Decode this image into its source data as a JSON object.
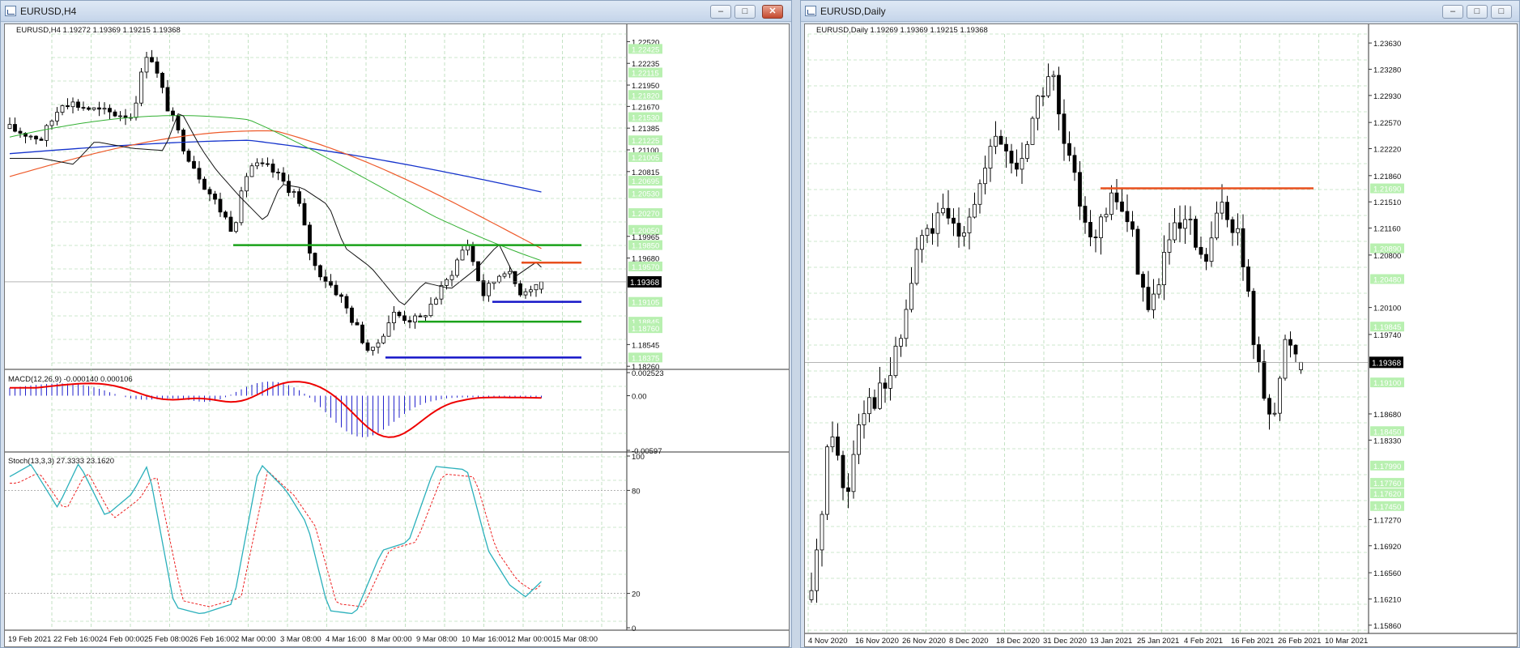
{
  "left": {
    "title": "EURUSD,H4",
    "info": "EURUSD,H4  1.19272 1.19369 1.19215 1.19368",
    "price_ticks": [
      {
        "v": 1.2252,
        "l": "1.22520",
        "hl": false
      },
      {
        "v": 1.22425,
        "l": "1.22425",
        "hl": true
      },
      {
        "v": 1.22235,
        "l": "1.22235",
        "hl": false
      },
      {
        "v": 1.22115,
        "l": "1.22115",
        "hl": true
      },
      {
        "v": 1.2195,
        "l": "1.21950",
        "hl": false
      },
      {
        "v": 1.2182,
        "l": "1.21820",
        "hl": true
      },
      {
        "v": 1.2167,
        "l": "1.21670",
        "hl": false
      },
      {
        "v": 1.2153,
        "l": "1.21530",
        "hl": true
      },
      {
        "v": 1.21385,
        "l": "1.21385",
        "hl": false
      },
      {
        "v": 1.21225,
        "l": "1.21225",
        "hl": true
      },
      {
        "v": 1.211,
        "l": "1.21100",
        "hl": false
      },
      {
        "v": 1.21005,
        "l": "1.21005",
        "hl": true
      },
      {
        "v": 1.20815,
        "l": "1.20815",
        "hl": false
      },
      {
        "v": 1.20695,
        "l": "1.20695",
        "hl": true
      },
      {
        "v": 1.2053,
        "l": "1.20530",
        "hl": true
      },
      {
        "v": 1.2027,
        "l": "1.20270",
        "hl": true
      },
      {
        "v": 1.2005,
        "l": "1.20050",
        "hl": true
      },
      {
        "v": 1.19965,
        "l": "1.19965",
        "hl": false
      },
      {
        "v": 1.1985,
        "l": "1.19850",
        "hl": true
      },
      {
        "v": 1.1968,
        "l": "1.19680",
        "hl": false
      },
      {
        "v": 1.1957,
        "l": "1.19570",
        "hl": true
      },
      {
        "v": 1.19105,
        "l": "1.19105",
        "hl": true
      },
      {
        "v": 1.18845,
        "l": "1.18845",
        "hl": true
      },
      {
        "v": 1.1876,
        "l": "1.18760",
        "hl": true
      },
      {
        "v": 1.18545,
        "l": "1.18545",
        "hl": false
      },
      {
        "v": 1.18375,
        "l": "1.18375",
        "hl": true
      },
      {
        "v": 1.1826,
        "l": "1.18260",
        "hl": false
      }
    ],
    "current_price": "1.19368",
    "macd_label": "MACD(12,26,9) -0.000140 0.000106",
    "macd_ticks": [
      "0.002523",
      "0.00",
      "-0.00597"
    ],
    "stoch_label": "Stoch(13,3,3) 27.3333 23.1620",
    "stoch_ticks": [
      "100",
      "80",
      "20",
      "0"
    ],
    "time_labels": [
      "19 Feb 2021",
      "22 Feb 16:00",
      "24 Feb 00:00",
      "25 Feb 08:00",
      "26 Feb 16:00",
      "2 Mar 00:00",
      "3 Mar 08:00",
      "4 Mar 16:00",
      "8 Mar 00:00",
      "9 Mar 08:00",
      "10 Mar 16:00",
      "12 Mar 00:00",
      "15 Mar 08:00"
    ]
  },
  "right": {
    "title": "EURUSD,Daily",
    "info": "EURUSD,Daily  1.19269 1.19369 1.19215 1.19368",
    "price_ticks": [
      {
        "v": 1.2363,
        "l": "1.23630",
        "hl": false
      },
      {
        "v": 1.2328,
        "l": "1.23280",
        "hl": false
      },
      {
        "v": 1.2293,
        "l": "1.22930",
        "hl": false
      },
      {
        "v": 1.2257,
        "l": "1.22570",
        "hl": false
      },
      {
        "v": 1.2222,
        "l": "1.22220",
        "hl": false
      },
      {
        "v": 1.2186,
        "l": "1.21860",
        "hl": false
      },
      {
        "v": 1.2169,
        "l": "1.21690",
        "hl": true
      },
      {
        "v": 1.2151,
        "l": "1.21510",
        "hl": false
      },
      {
        "v": 1.2116,
        "l": "1.21160",
        "hl": false
      },
      {
        "v": 1.2089,
        "l": "1.20890",
        "hl": true
      },
      {
        "v": 1.208,
        "l": "1.20800",
        "hl": false
      },
      {
        "v": 1.2048,
        "l": "1.20480",
        "hl": true
      },
      {
        "v": 1.201,
        "l": "1.20100",
        "hl": false
      },
      {
        "v": 1.19845,
        "l": "1.19845",
        "hl": true
      },
      {
        "v": 1.1974,
        "l": "1.19740",
        "hl": false
      },
      {
        "v": 1.191,
        "l": "1.19100",
        "hl": true
      },
      {
        "v": 1.1868,
        "l": "1.18680",
        "hl": false
      },
      {
        "v": 1.1845,
        "l": "1.18450",
        "hl": true
      },
      {
        "v": 1.1833,
        "l": "1.18330",
        "hl": false
      },
      {
        "v": 1.1799,
        "l": "1.17990",
        "hl": true
      },
      {
        "v": 1.1776,
        "l": "1.17760",
        "hl": true
      },
      {
        "v": 1.1762,
        "l": "1.17620",
        "hl": true
      },
      {
        "v": 1.1745,
        "l": "1.17450",
        "hl": true
      },
      {
        "v": 1.1727,
        "l": "1.17270",
        "hl": false
      },
      {
        "v": 1.1692,
        "l": "1.16920",
        "hl": false
      },
      {
        "v": 1.1656,
        "l": "1.16560",
        "hl": false
      },
      {
        "v": 1.1621,
        "l": "1.16210",
        "hl": false
      },
      {
        "v": 1.1586,
        "l": "1.15860",
        "hl": false
      }
    ],
    "current_price": "1.19368",
    "time_labels": [
      "4 Nov 2020",
      "16 Nov 2020",
      "26 Nov 2020",
      "8 Dec 2020",
      "18 Dec 2020",
      "31 Dec 2020",
      "13 Jan 2021",
      "25 Jan 2021",
      "4 Feb 2021",
      "16 Feb 2021",
      "26 Feb 2021",
      "10 Mar 2021"
    ]
  },
  "buttons": {
    "min": "–",
    "max": "□",
    "close": "✕"
  },
  "colors": {
    "bull": "#ffffff",
    "bear": "#000000",
    "support": "#1616c8",
    "resistance": "#e8501e",
    "level": "#1aa21a",
    "macd_hist": "#2222cc",
    "macd_signal": "#ee0000",
    "stoch_main": "#2ab0bb",
    "stoch_signal": "#ee2222"
  }
}
